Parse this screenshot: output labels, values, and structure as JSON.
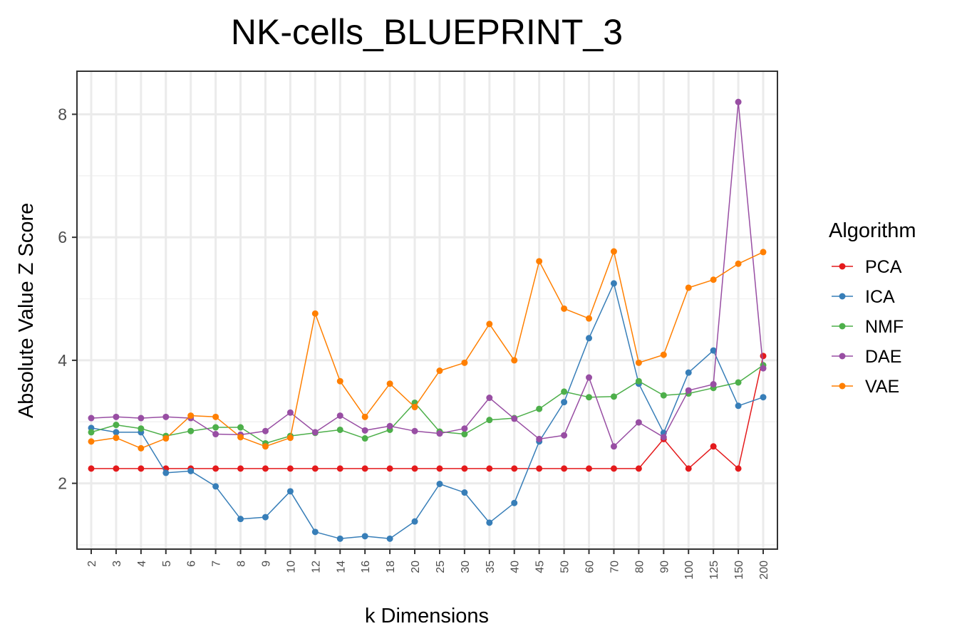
{
  "chart_data": {
    "type": "line",
    "title": "NK-cells_BLUEPRINT_3",
    "xlabel": "k Dimensions",
    "ylabel": "Absolute Value Z Score",
    "categories": [
      "2",
      "3",
      "4",
      "5",
      "6",
      "7",
      "8",
      "9",
      "10",
      "12",
      "14",
      "16",
      "18",
      "20",
      "25",
      "30",
      "35",
      "40",
      "45",
      "50",
      "60",
      "70",
      "80",
      "90",
      "100",
      "125",
      "150",
      "200"
    ],
    "ylim": [
      0.93,
      8.7
    ],
    "yticks": [
      2,
      4,
      6,
      8
    ],
    "grid": true,
    "legend_title": "Algorithm",
    "legend_position": "right",
    "series": [
      {
        "name": "PCA",
        "color": "#E41A1C",
        "values": [
          2.24,
          2.24,
          2.24,
          2.24,
          2.24,
          2.24,
          2.24,
          2.24,
          2.24,
          2.24,
          2.24,
          2.24,
          2.24,
          2.24,
          2.24,
          2.24,
          2.24,
          2.24,
          2.24,
          2.24,
          2.24,
          2.24,
          2.24,
          2.72,
          2.24,
          2.6,
          2.24,
          4.07
        ]
      },
      {
        "name": "ICA",
        "color": "#377EB8",
        "values": [
          2.9,
          2.83,
          2.83,
          2.17,
          2.2,
          1.95,
          1.42,
          1.45,
          1.87,
          1.21,
          1.1,
          1.14,
          1.1,
          1.38,
          1.99,
          1.85,
          1.36,
          1.68,
          2.68,
          3.32,
          4.36,
          5.25,
          3.62,
          2.82,
          3.8,
          4.16,
          3.26,
          3.4
        ]
      },
      {
        "name": "NMF",
        "color": "#4DAF4A",
        "values": [
          2.83,
          2.95,
          2.89,
          2.77,
          2.85,
          2.91,
          2.91,
          2.65,
          2.77,
          2.82,
          2.87,
          2.73,
          2.87,
          3.31,
          2.84,
          2.8,
          3.03,
          3.06,
          3.21,
          3.49,
          3.4,
          3.41,
          3.66,
          3.43,
          3.46,
          3.55,
          3.64,
          3.92
        ]
      },
      {
        "name": "DAE",
        "color": "#984EA3",
        "values": [
          3.06,
          3.08,
          3.06,
          3.08,
          3.06,
          2.8,
          2.79,
          2.85,
          3.15,
          2.83,
          3.1,
          2.86,
          2.93,
          2.85,
          2.81,
          2.89,
          3.39,
          3.05,
          2.72,
          2.78,
          3.72,
          2.6,
          2.99,
          2.75,
          3.51,
          3.61,
          8.2,
          3.87
        ]
      },
      {
        "name": "VAE",
        "color": "#FF7F00",
        "values": [
          2.68,
          2.74,
          2.57,
          2.73,
          3.1,
          3.08,
          2.75,
          2.6,
          2.74,
          4.76,
          3.66,
          3.08,
          3.62,
          3.24,
          3.83,
          3.96,
          4.59,
          4.0,
          5.61,
          4.84,
          4.68,
          5.77,
          3.96,
          4.09,
          5.18,
          5.31,
          5.57,
          5.76
        ]
      }
    ]
  }
}
